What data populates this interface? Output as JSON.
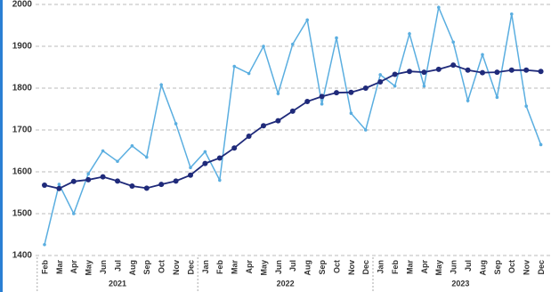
{
  "chart_data": {
    "type": "line",
    "categories": [
      "Feb",
      "Mar",
      "Apr",
      "May",
      "Jun",
      "Jul",
      "Aug",
      "Sep",
      "Oct",
      "Nov",
      "Dec",
      "Jan",
      "Feb",
      "Mar",
      "Apr",
      "May",
      "Jun",
      "Jul",
      "Aug",
      "Sep",
      "Oct",
      "Nov",
      "Dec",
      "Jan",
      "Feb",
      "Mar",
      "Apr",
      "May",
      "Jun",
      "Jul",
      "Aug",
      "Sep",
      "Oct",
      "Nov",
      "Dec"
    ],
    "years": [
      "2021",
      "2022",
      "2023"
    ],
    "series": [
      {
        "color": "#5aaee0",
        "values": [
          1426,
          1570,
          1500,
          1595,
          1650,
          1625,
          1662,
          1635,
          1808,
          1715,
          1610,
          1648,
          1580,
          1852,
          1835,
          1900,
          1787,
          1905,
          1963,
          1762,
          1920,
          1740,
          1700,
          1832,
          1805,
          1930,
          1805,
          1993,
          1910,
          1770,
          1880,
          1778,
          1977,
          1757,
          1665
        ]
      },
      {
        "color": "#1f2a7a",
        "values": [
          1568,
          1560,
          1577,
          1581,
          1588,
          1578,
          1566,
          1561,
          1570,
          1578,
          1592,
          1620,
          1633,
          1657,
          1685,
          1710,
          1722,
          1745,
          1768,
          1780,
          1789,
          1790,
          1800,
          1815,
          1833,
          1840,
          1838,
          1845,
          1855,
          1843,
          1837,
          1838,
          1843,
          1843,
          1840
        ]
      }
    ],
    "ylim": [
      1400,
      2000
    ],
    "yticks": [
      1400,
      1500,
      1600,
      1700,
      1800,
      1900,
      2000
    ],
    "grid": true
  }
}
